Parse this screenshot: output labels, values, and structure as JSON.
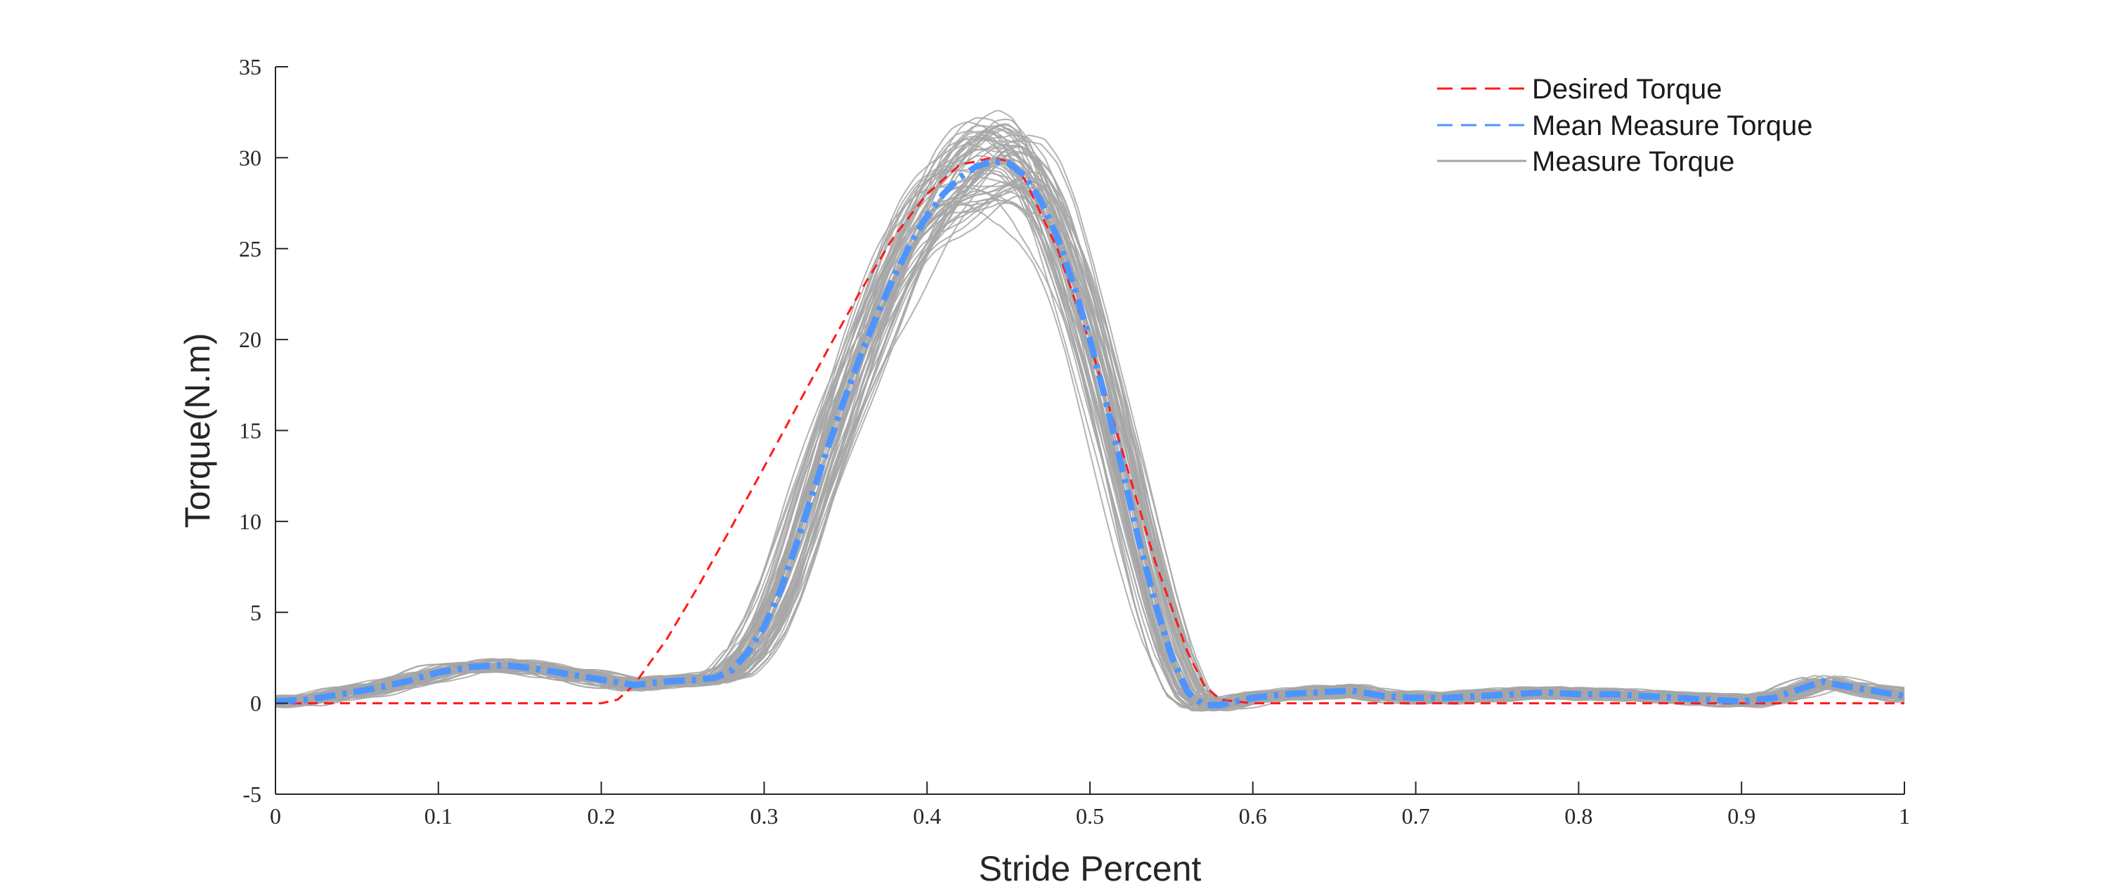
{
  "chart_data": {
    "type": "line",
    "title": "",
    "xlabel": "Stride Percent",
    "ylabel": "Torque(N.m)",
    "xlim": [
      0,
      1
    ],
    "ylim": [
      -5,
      35
    ],
    "x_ticks": [
      0,
      0.1,
      0.2,
      0.3,
      0.4,
      0.5,
      0.6,
      0.7,
      0.8,
      0.9,
      1
    ],
    "x_tick_labels": [
      "0",
      "0.1",
      "0.2",
      "0.3",
      "0.4",
      "0.5",
      "0.6",
      "0.7",
      "0.8",
      "0.9",
      "1"
    ],
    "y_ticks": [
      -5,
      0,
      5,
      10,
      15,
      20,
      25,
      30,
      35
    ],
    "y_tick_labels": [
      "-5",
      "0",
      "5",
      "10",
      "15",
      "20",
      "25",
      "30",
      "35"
    ],
    "grid": false,
    "legend_position": "top-right",
    "series": [
      {
        "name": "Desired Torque",
        "color": "#ff1a1a",
        "style": "dashed",
        "x": [
          0,
          0.1,
          0.2,
          0.21,
          0.22,
          0.24,
          0.26,
          0.28,
          0.3,
          0.32,
          0.34,
          0.36,
          0.38,
          0.4,
          0.42,
          0.44,
          0.45,
          0.46,
          0.48,
          0.5,
          0.52,
          0.54,
          0.56,
          0.57,
          0.58,
          0.6,
          0.7,
          0.8,
          0.9,
          1.0
        ],
        "y": [
          0,
          0,
          0,
          0.2,
          1.0,
          3.5,
          6.5,
          9.7,
          13.0,
          16.3,
          19.6,
          22.8,
          25.7,
          28.0,
          29.6,
          30.0,
          29.8,
          28.8,
          25.0,
          19.8,
          13.8,
          7.8,
          2.8,
          1.0,
          0.2,
          0,
          0,
          0,
          0,
          0
        ]
      },
      {
        "name": "Mean Measure Torque",
        "color": "#4d94ff",
        "style": "dashdot",
        "x": [
          0,
          0.02,
          0.04,
          0.06,
          0.08,
          0.1,
          0.12,
          0.14,
          0.16,
          0.18,
          0.2,
          0.22,
          0.24,
          0.26,
          0.27,
          0.28,
          0.29,
          0.3,
          0.31,
          0.32,
          0.33,
          0.34,
          0.35,
          0.36,
          0.37,
          0.38,
          0.39,
          0.4,
          0.41,
          0.42,
          0.43,
          0.44,
          0.45,
          0.46,
          0.47,
          0.48,
          0.49,
          0.5,
          0.51,
          0.52,
          0.53,
          0.54,
          0.55,
          0.56,
          0.57,
          0.58,
          0.6,
          0.62,
          0.64,
          0.66,
          0.68,
          0.7,
          0.72,
          0.74,
          0.76,
          0.78,
          0.8,
          0.82,
          0.84,
          0.86,
          0.88,
          0.9,
          0.92,
          0.94,
          0.95,
          0.96,
          0.98,
          1.0
        ],
        "y": [
          0.1,
          0.2,
          0.5,
          0.8,
          1.2,
          1.7,
          2.0,
          2.1,
          1.9,
          1.6,
          1.3,
          1.0,
          1.2,
          1.3,
          1.4,
          1.8,
          2.8,
          4.2,
          6.2,
          8.8,
          11.6,
          14.3,
          16.9,
          19.3,
          21.5,
          23.5,
          25.3,
          26.8,
          28.0,
          28.9,
          29.5,
          29.8,
          29.7,
          29.0,
          27.6,
          25.6,
          23.0,
          20.0,
          16.5,
          12.8,
          9.0,
          5.5,
          2.6,
          0.6,
          -0.1,
          -0.1,
          0.3,
          0.5,
          0.6,
          0.7,
          0.4,
          0.3,
          0.3,
          0.4,
          0.5,
          0.6,
          0.5,
          0.5,
          0.4,
          0.3,
          0.2,
          0.1,
          0.3,
          0.9,
          1.2,
          1.0,
          0.7,
          0.4
        ]
      },
      {
        "name": "Measure Torque",
        "color": "#a6a6a6",
        "style": "solid",
        "note_count": "many overlaid trials"
      }
    ]
  }
}
